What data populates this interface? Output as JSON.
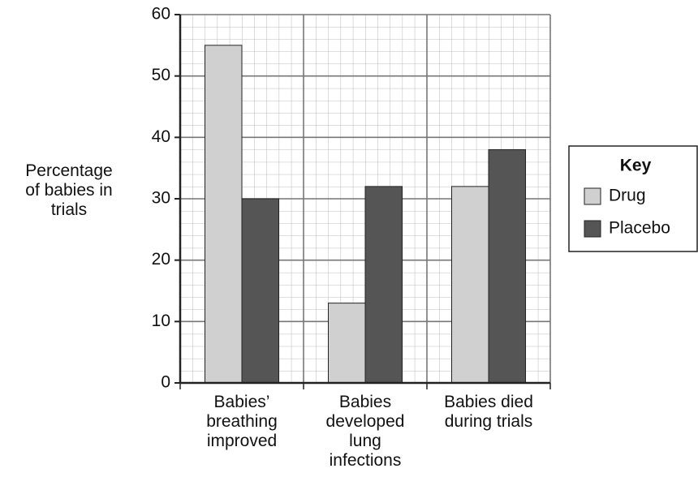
{
  "chart_data": {
    "type": "bar",
    "y_label": "Percentage of babies in trials",
    "categories": [
      "Babies’ breathing improved",
      "Babies developed lung infections",
      "Babies died during trials"
    ],
    "series": [
      {
        "name": "Drug",
        "color": "#d0d0d0",
        "values": [
          55,
          13,
          32
        ]
      },
      {
        "name": "Placebo",
        "color": "#555555",
        "values": [
          30,
          32,
          38
        ]
      }
    ],
    "legend_title": "Key",
    "ylim": [
      0,
      60
    ],
    "yticks": [
      0,
      10,
      20,
      30,
      40,
      50,
      60
    ],
    "grid": true
  }
}
